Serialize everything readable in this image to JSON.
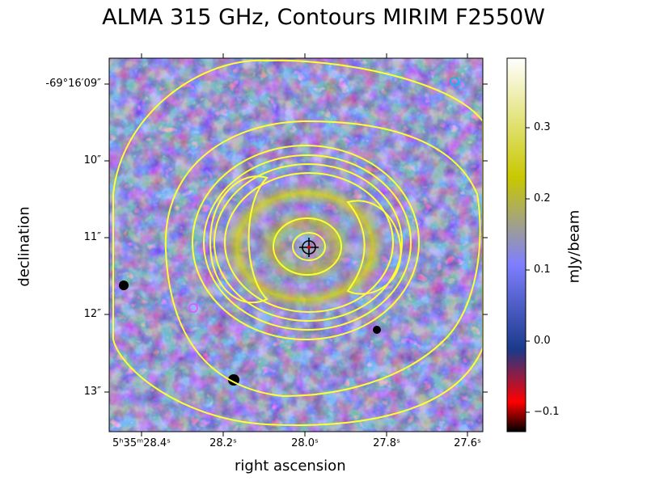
{
  "title": "ALMA 315 GHz, Contours MIRIM F2550W",
  "axes": {
    "xlabel": "right ascension",
    "ylabel": "declination",
    "x_ticks": [
      "5ʰ35ᵐ28.4ˢ",
      "28.2ˢ",
      "28.0ˢ",
      "27.8ˢ",
      "27.6ˢ"
    ],
    "y_ticks": [
      "-69°16′09″",
      "10″",
      "11″",
      "12″",
      "13″"
    ]
  },
  "colorbar": {
    "label": "mJy/beam",
    "ticks": [
      "0.3",
      "0.2",
      "0.1",
      "0.0",
      "−0.1"
    ],
    "colors": [
      "#000000",
      "#ff0000",
      "#1a3a8a",
      "#7f7fff",
      "#c8c800",
      "#ffffff"
    ]
  },
  "contours": {
    "color": "#ffff33",
    "count": 8
  },
  "markers": [
    {
      "name": "center-crosshair",
      "color": "#cc0000"
    },
    {
      "name": "cyan-circle",
      "color": "#00bfff"
    },
    {
      "name": "magenta-circle",
      "color": "#ff44ff"
    }
  ]
}
